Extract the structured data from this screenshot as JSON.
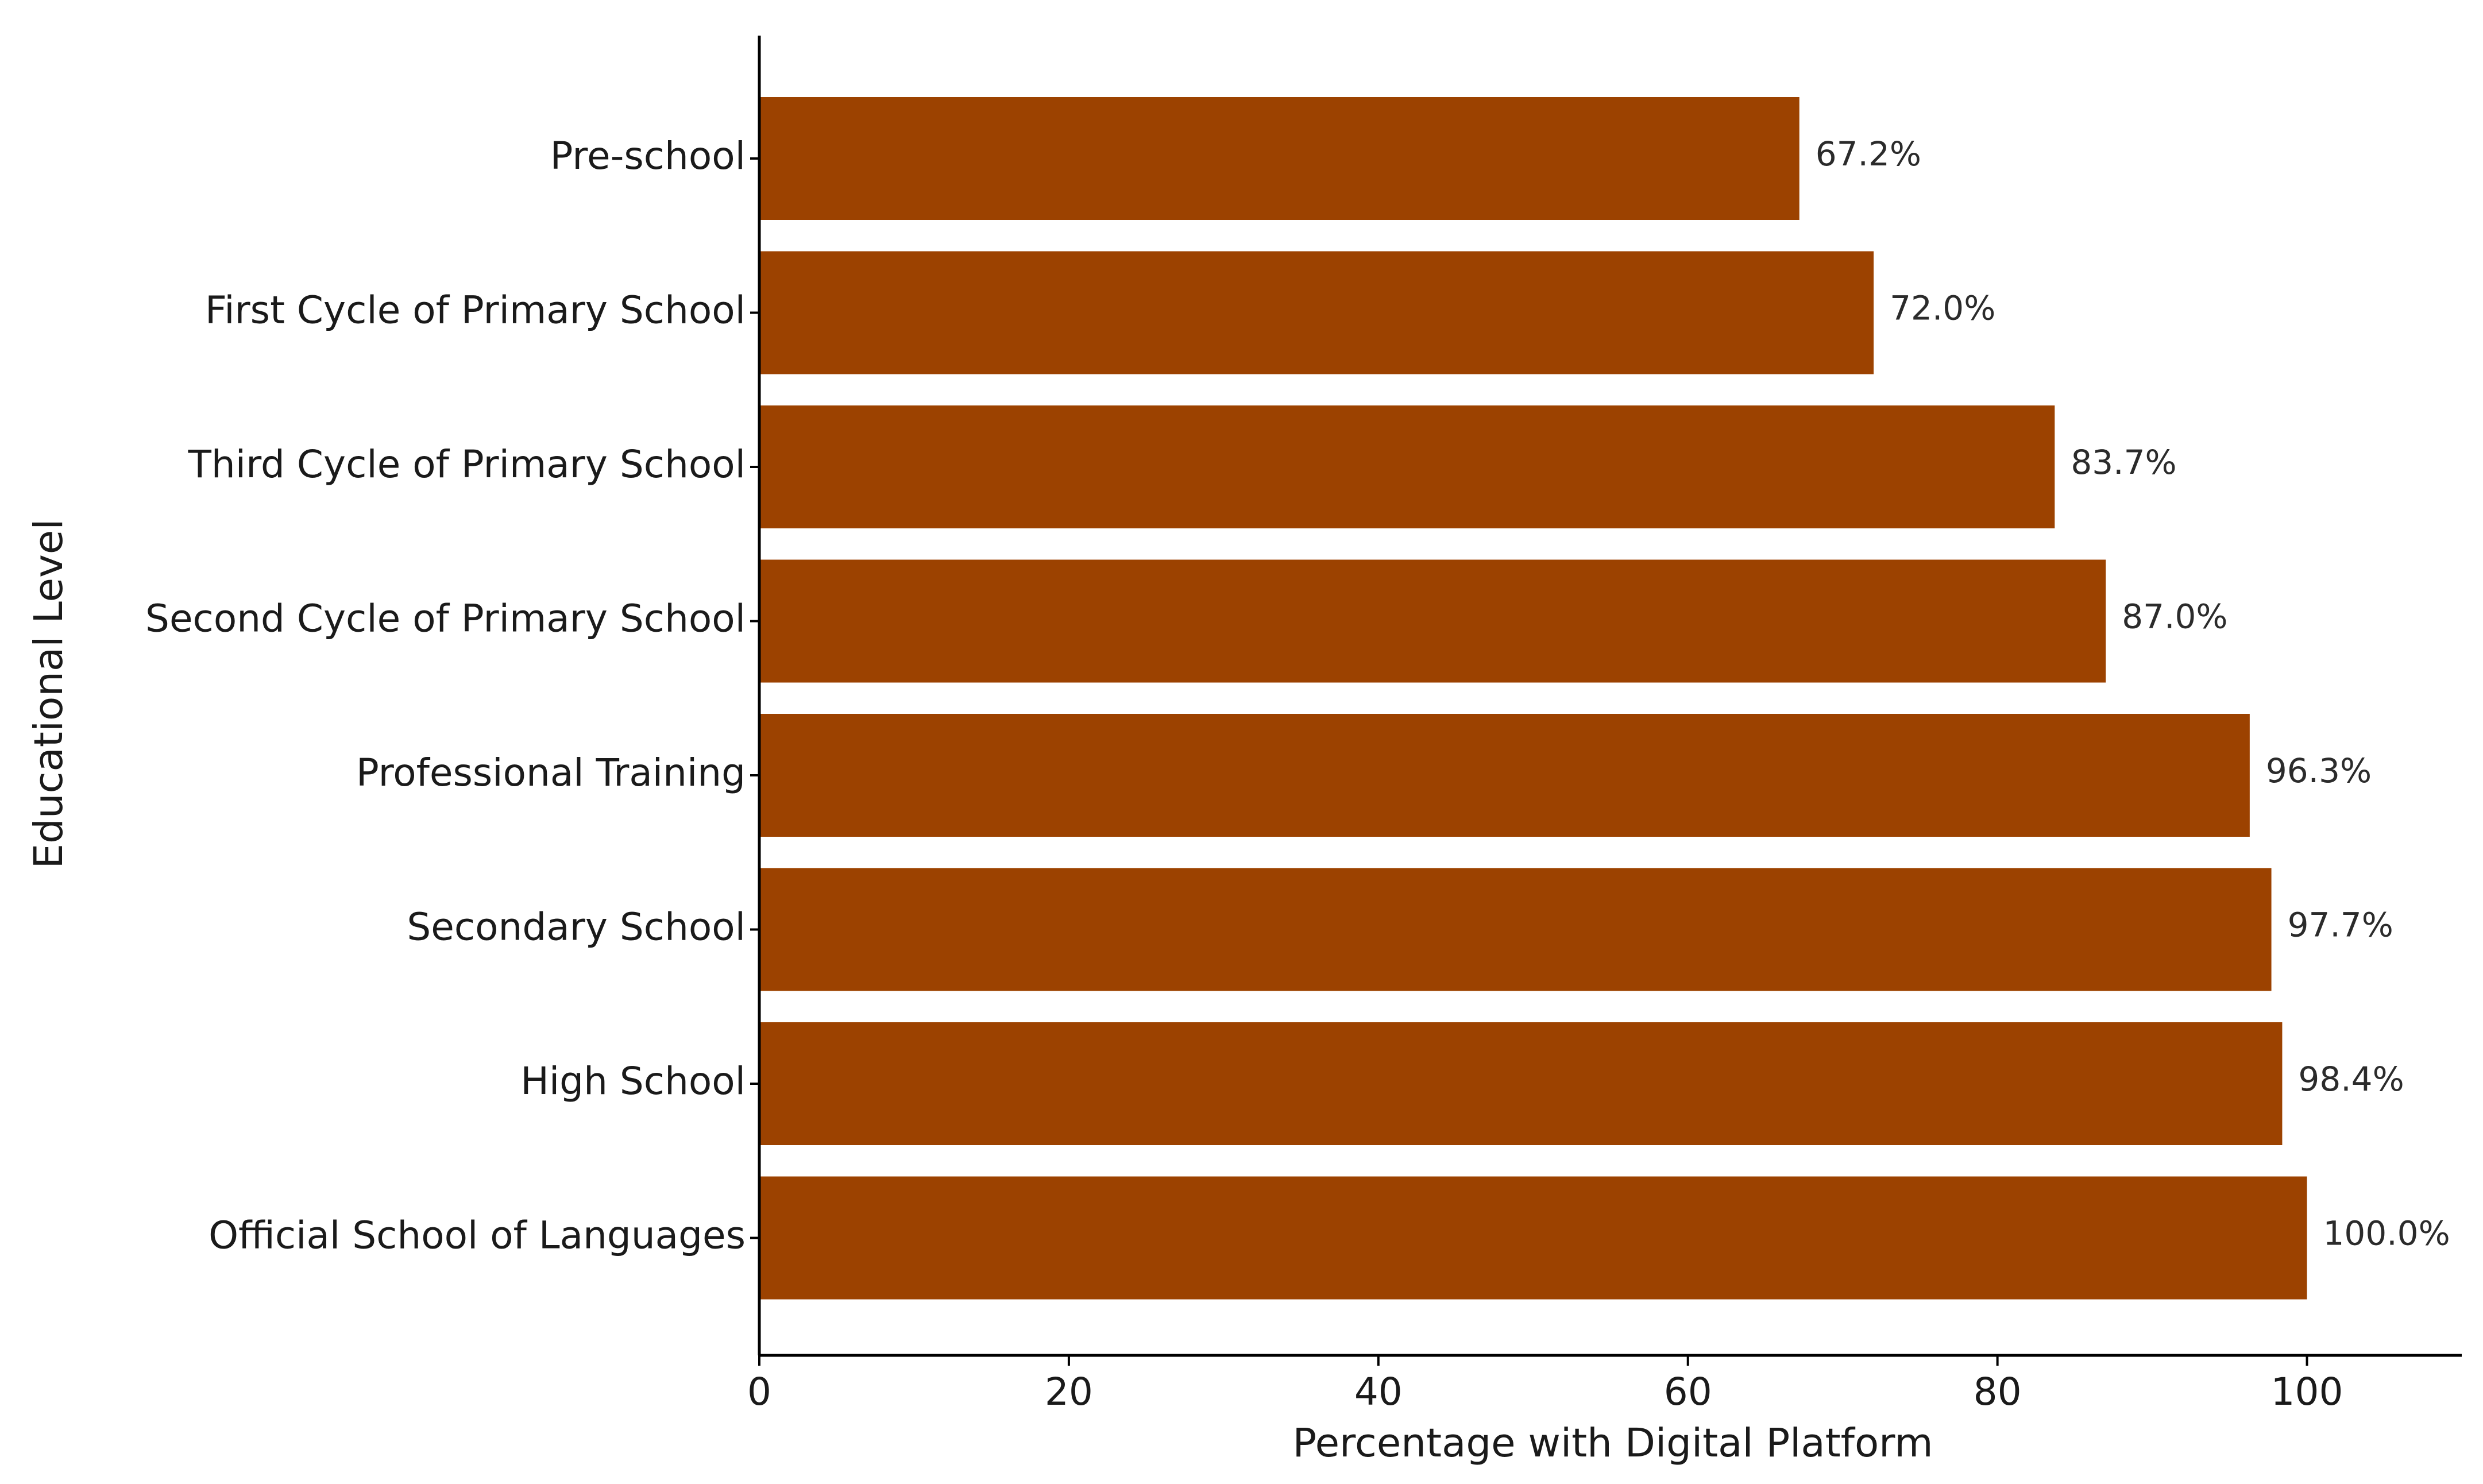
{
  "chart_data": {
    "type": "bar",
    "orientation": "horizontal",
    "categories": [
      "Pre-school",
      "First Cycle of Primary School",
      "Third Cycle of Primary School",
      "Second Cycle of Primary School",
      "Professional Training",
      "Secondary School",
      "High School",
      "Official School of Languages"
    ],
    "values": [
      67.2,
      72.0,
      83.7,
      87.0,
      96.3,
      97.7,
      98.4,
      100.0
    ],
    "value_labels": [
      "67.2%",
      "72.0%",
      "83.7%",
      "87.0%",
      "96.3%",
      "97.7%",
      "98.4%",
      "100.0%"
    ],
    "title": "",
    "xlabel": "Percentage with Digital Platform",
    "ylabel": "Educational Level",
    "xlim": [
      0,
      110
    ],
    "xticks": [
      0,
      20,
      40,
      60,
      80,
      100
    ],
    "xtick_labels": [
      "0",
      "20",
      "40",
      "60",
      "80",
      "100"
    ],
    "bar_color": "#9c4200",
    "grid": false,
    "legend": "none"
  }
}
